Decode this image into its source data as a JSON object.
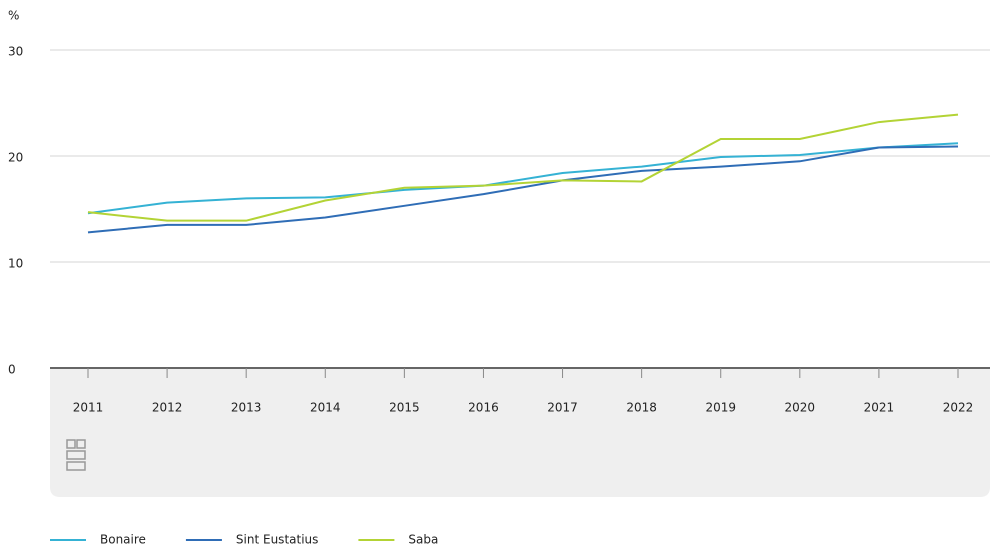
{
  "chart_data": {
    "type": "line",
    "ylabel": "%",
    "categories": [
      "2011",
      "2012",
      "2013",
      "2014",
      "2015",
      "2016",
      "2017",
      "2018",
      "2019",
      "2020",
      "2021",
      "2022"
    ],
    "series": [
      {
        "name": "Bonaire",
        "color": "#35b2d4",
        "values": [
          14.6,
          15.6,
          16.0,
          16.1,
          16.8,
          17.2,
          18.4,
          19.0,
          19.9,
          20.1,
          20.8,
          21.2
        ]
      },
      {
        "name": "Sint Eustatius",
        "color": "#2f6db6",
        "values": [
          12.8,
          13.5,
          13.5,
          14.2,
          15.3,
          16.4,
          17.7,
          18.6,
          19.0,
          19.5,
          20.8,
          20.9
        ]
      },
      {
        "name": "Saba",
        "color": "#b3d335",
        "values": [
          14.7,
          13.9,
          13.9,
          15.8,
          17.0,
          17.2,
          17.7,
          17.6,
          21.6,
          21.6,
          23.2,
          23.9
        ]
      }
    ],
    "ylim": [
      0,
      30
    ],
    "yticks": [
      0,
      10,
      20,
      30
    ],
    "grid": true
  }
}
